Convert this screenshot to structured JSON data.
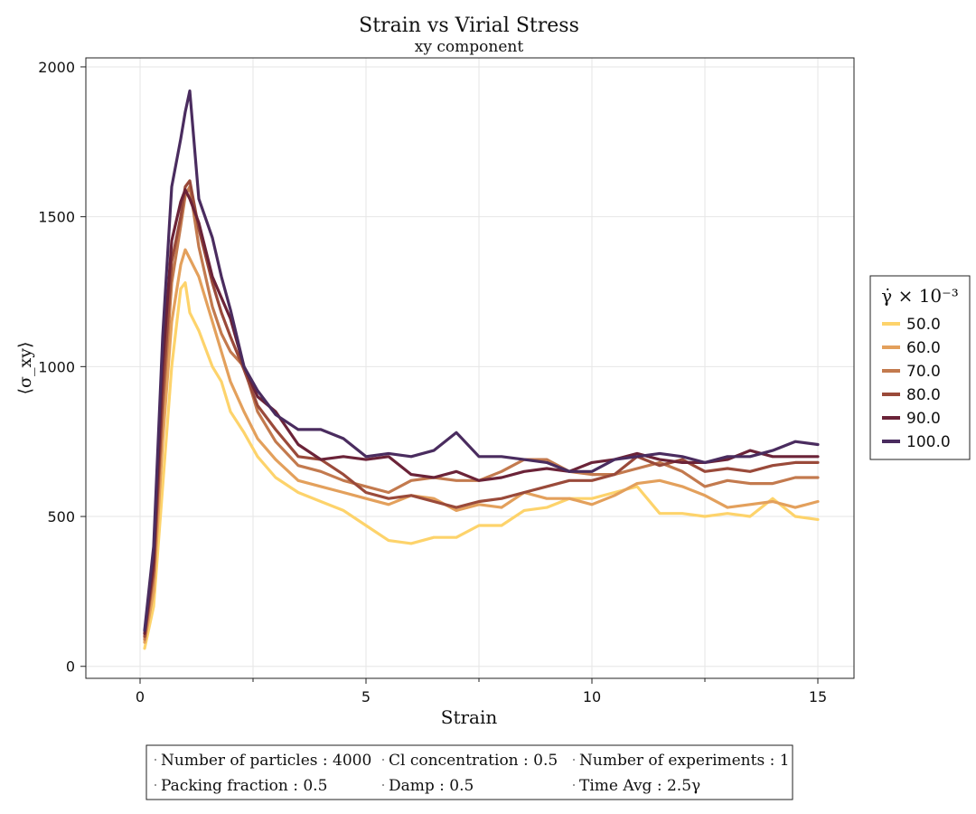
{
  "chart_data": {
    "type": "line",
    "title": "Strain vs Virial Stress",
    "subtitle": "xy component",
    "xlabel": "Strain",
    "ylabel": "⟨σ_xy⟩",
    "xlim": [
      -1.2,
      15.8
    ],
    "ylim": [
      -40,
      2030
    ],
    "xticks": [
      0,
      5,
      10,
      15
    ],
    "xtick_labels": [
      "0",
      "5",
      "10",
      "15"
    ],
    "yticks": [
      0,
      500,
      1000,
      1500,
      2000
    ],
    "ytick_labels": [
      "0",
      "500",
      "1000",
      "1500",
      "2000"
    ],
    "grid": true,
    "legend": {
      "title": "γ̇ × 10⁻³",
      "placement": "right"
    },
    "series": [
      {
        "name": "50.0",
        "color": "#fdd36b",
        "x": [
          0.1,
          0.3,
          0.5,
          0.7,
          0.9,
          1.0,
          1.1,
          1.3,
          1.6,
          1.8,
          2.0,
          2.3,
          2.6,
          3.0,
          3.5,
          4.0,
          4.5,
          5.0,
          5.5,
          6.0,
          6.5,
          7.0,
          7.5,
          8.0,
          8.5,
          9.0,
          9.5,
          10.0,
          10.5,
          11.0,
          11.5,
          12.0,
          12.5,
          13.0,
          13.5,
          14.0,
          14.5,
          15.0
        ],
        "y": [
          60,
          200,
          600,
          1000,
          1260,
          1280,
          1180,
          1120,
          1000,
          950,
          850,
          780,
          700,
          630,
          580,
          550,
          520,
          470,
          420,
          410,
          430,
          430,
          470,
          470,
          520,
          530,
          560,
          560,
          580,
          600,
          510,
          510,
          500,
          510,
          500,
          560,
          500,
          490
        ]
      },
      {
        "name": "60.0",
        "color": "#e3a05c",
        "x": [
          0.1,
          0.3,
          0.5,
          0.7,
          0.9,
          1.0,
          1.1,
          1.3,
          1.6,
          1.8,
          2.0,
          2.3,
          2.6,
          3.0,
          3.5,
          4.0,
          4.5,
          5.0,
          5.5,
          6.0,
          6.5,
          7.0,
          7.5,
          8.0,
          8.5,
          9.0,
          9.5,
          10.0,
          10.5,
          11.0,
          11.5,
          12.0,
          12.5,
          13.0,
          13.5,
          14.0,
          14.5,
          15.0
        ],
        "y": [
          80,
          250,
          750,
          1150,
          1340,
          1390,
          1360,
          1300,
          1150,
          1050,
          950,
          850,
          760,
          690,
          620,
          600,
          580,
          560,
          540,
          570,
          560,
          520,
          540,
          530,
          580,
          560,
          560,
          540,
          570,
          610,
          620,
          600,
          570,
          530,
          540,
          550,
          530,
          550
        ]
      },
      {
        "name": "70.0",
        "color": "#c37a4e",
        "x": [
          0.1,
          0.3,
          0.5,
          0.7,
          0.9,
          1.0,
          1.1,
          1.3,
          1.6,
          1.8,
          2.0,
          2.3,
          2.6,
          3.0,
          3.5,
          4.0,
          4.5,
          5.0,
          5.5,
          6.0,
          6.5,
          7.0,
          7.5,
          8.0,
          8.5,
          9.0,
          9.5,
          10.0,
          10.5,
          11.0,
          11.5,
          12.0,
          12.5,
          13.0,
          13.5,
          14.0,
          14.5,
          15.0
        ],
        "y": [
          90,
          300,
          850,
          1280,
          1470,
          1570,
          1600,
          1400,
          1200,
          1110,
          1050,
          1000,
          850,
          750,
          670,
          650,
          620,
          600,
          580,
          620,
          630,
          620,
          620,
          650,
          690,
          690,
          650,
          640,
          640,
          660,
          680,
          650,
          600,
          620,
          610,
          610,
          630,
          630
        ]
      },
      {
        "name": "80.0",
        "color": "#9a4a3a",
        "x": [
          0.1,
          0.3,
          0.5,
          0.7,
          0.9,
          1.0,
          1.1,
          1.3,
          1.6,
          1.8,
          2.0,
          2.3,
          2.6,
          3.0,
          3.5,
          4.0,
          4.5,
          5.0,
          5.5,
          6.0,
          6.5,
          7.0,
          7.5,
          8.0,
          8.5,
          9.0,
          9.5,
          10.0,
          10.5,
          11.0,
          11.5,
          12.0,
          12.5,
          13.0,
          13.5,
          14.0,
          14.5,
          15.0
        ],
        "y": [
          100,
          320,
          900,
          1350,
          1500,
          1600,
          1620,
          1460,
          1280,
          1180,
          1100,
          990,
          870,
          790,
          700,
          690,
          640,
          580,
          560,
          570,
          550,
          530,
          550,
          560,
          580,
          600,
          620,
          620,
          640,
          700,
          670,
          690,
          650,
          660,
          650,
          670,
          680,
          680
        ]
      },
      {
        "name": "90.0",
        "color": "#6b2338",
        "x": [
          0.1,
          0.3,
          0.5,
          0.7,
          0.9,
          1.0,
          1.1,
          1.3,
          1.6,
          1.8,
          2.0,
          2.3,
          2.6,
          3.0,
          3.5,
          4.0,
          4.5,
          5.0,
          5.5,
          6.0,
          6.5,
          7.0,
          7.5,
          8.0,
          8.5,
          9.0,
          9.5,
          10.0,
          10.5,
          11.0,
          11.5,
          12.0,
          12.5,
          13.0,
          13.5,
          14.0,
          14.5,
          15.0
        ],
        "y": [
          110,
          350,
          1000,
          1420,
          1550,
          1590,
          1560,
          1480,
          1300,
          1230,
          1160,
          1000,
          900,
          850,
          740,
          690,
          700,
          690,
          700,
          640,
          630,
          650,
          620,
          630,
          650,
          660,
          650,
          680,
          690,
          710,
          690,
          680,
          680,
          690,
          720,
          700,
          700,
          700
        ]
      },
      {
        "name": "100.0",
        "color": "#4a2c5f",
        "x": [
          0.1,
          0.3,
          0.5,
          0.7,
          0.9,
          1.0,
          1.1,
          1.3,
          1.6,
          1.8,
          2.0,
          2.3,
          2.6,
          3.0,
          3.5,
          4.0,
          4.5,
          5.0,
          5.5,
          6.0,
          6.5,
          7.0,
          7.5,
          8.0,
          8.5,
          9.0,
          9.5,
          10.0,
          10.5,
          11.0,
          11.5,
          12.0,
          12.5,
          13.0,
          13.5,
          14.0,
          14.5,
          15.0
        ],
        "y": [
          120,
          400,
          1100,
          1600,
          1760,
          1850,
          1920,
          1560,
          1430,
          1300,
          1190,
          1000,
          920,
          840,
          790,
          790,
          760,
          700,
          710,
          700,
          720,
          780,
          700,
          700,
          690,
          680,
          650,
          650,
          690,
          700,
          710,
          700,
          680,
          700,
          700,
          720,
          750,
          740
        ]
      }
    ]
  },
  "info_box": {
    "rows": [
      [
        "Number of particles : 4000",
        "Cl concentration : 0.5",
        "Number of experiments : 1"
      ],
      [
        "Packing fraction : 0.5",
        "Damp : 0.5",
        "Time Avg : 2.5γ"
      ]
    ]
  }
}
